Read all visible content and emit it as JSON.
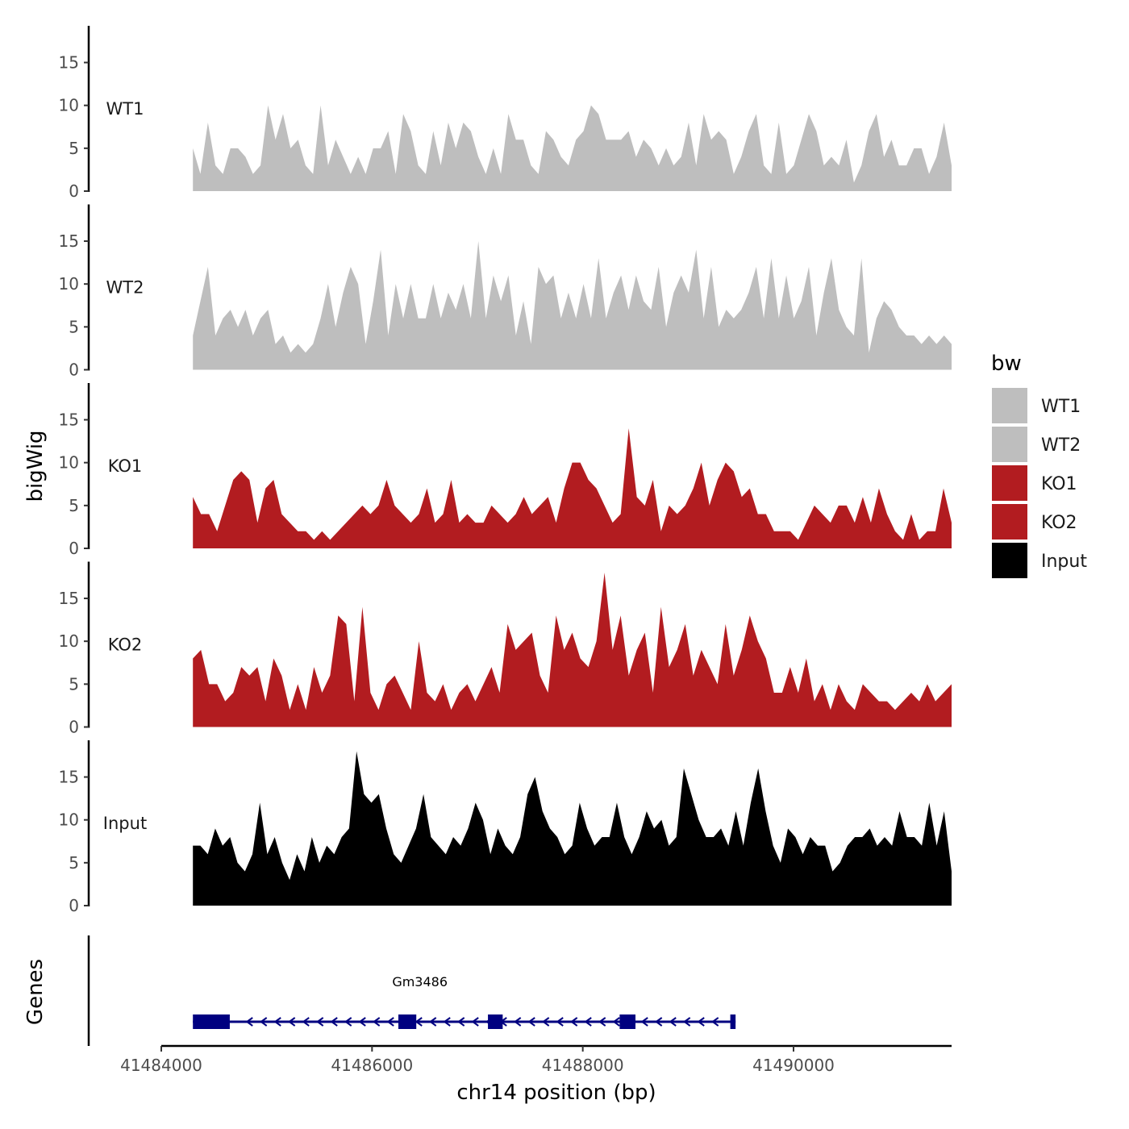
{
  "chart_data": {
    "type": "area",
    "xlabel": "chr14 position (bp)",
    "ylabel": "bigWig",
    "genes_label": "Genes",
    "xlim": [
      41484000,
      41491500
    ],
    "x_ticks": [
      41484000,
      41486000,
      41488000,
      41490000
    ],
    "x_tick_labels": [
      "41484000",
      "41486000",
      "41488000",
      "41490000"
    ],
    "ylim": [
      0,
      19
    ],
    "y_ticks": [
      0,
      5,
      10,
      15
    ],
    "legend_title": "bw",
    "x_start": 41484300,
    "x_end": 41491500,
    "tracks": [
      {
        "name": "WT1",
        "color": "#bebebe",
        "values": [
          5,
          2,
          8,
          3,
          2,
          5,
          5,
          4,
          2,
          3,
          10,
          6,
          9,
          5,
          6,
          3,
          2,
          10,
          3,
          6,
          4,
          2,
          4,
          2,
          5,
          5,
          7,
          2,
          9,
          7,
          3,
          2,
          7,
          3,
          8,
          5,
          8,
          7,
          4,
          2,
          5,
          2,
          9,
          6,
          6,
          3,
          2,
          7,
          6,
          4,
          3,
          6,
          7,
          10,
          9,
          6,
          6,
          6,
          7,
          4,
          6,
          5,
          3,
          5,
          3,
          4,
          8,
          3,
          9,
          6,
          7,
          6,
          2,
          4,
          7,
          9,
          3,
          2,
          8,
          2,
          3,
          6,
          9,
          7,
          3,
          4,
          3,
          6,
          1,
          3,
          7,
          9,
          4,
          6,
          3,
          3,
          5,
          5,
          2,
          4,
          8,
          3
        ]
      },
      {
        "name": "WT2",
        "color": "#bebebe",
        "values": [
          4,
          8,
          12,
          4,
          6,
          7,
          5,
          7,
          4,
          6,
          7,
          3,
          4,
          2,
          3,
          2,
          3,
          6,
          10,
          5,
          9,
          12,
          10,
          3,
          8,
          14,
          4,
          10,
          6,
          10,
          6,
          6,
          10,
          6,
          9,
          7,
          10,
          6,
          15,
          6,
          11,
          8,
          11,
          4,
          8,
          3,
          12,
          10,
          11,
          6,
          9,
          6,
          10,
          6,
          13,
          6,
          9,
          11,
          7,
          11,
          8,
          7,
          12,
          5,
          9,
          11,
          9,
          14,
          6,
          12,
          5,
          7,
          6,
          7,
          9,
          12,
          6,
          13,
          6,
          11,
          6,
          8,
          12,
          4,
          9,
          13,
          7,
          5,
          4,
          13,
          2,
          6,
          8,
          7,
          5,
          4,
          4,
          3,
          4,
          3,
          4,
          3
        ]
      },
      {
        "name": "KO1",
        "color": "#b21c20",
        "values": [
          6,
          4,
          4,
          2,
          5,
          8,
          9,
          8,
          3,
          7,
          8,
          4,
          3,
          2,
          2,
          1,
          2,
          1,
          2,
          3,
          4,
          5,
          4,
          5,
          8,
          5,
          4,
          3,
          4,
          7,
          3,
          4,
          8,
          3,
          4,
          3,
          3,
          5,
          4,
          3,
          4,
          6,
          4,
          5,
          6,
          3,
          7,
          10,
          10,
          8,
          7,
          5,
          3,
          4,
          14,
          6,
          5,
          8,
          2,
          5,
          4,
          5,
          7,
          10,
          5,
          8,
          10,
          9,
          6,
          7,
          4,
          4,
          2,
          2,
          2,
          1,
          3,
          5,
          4,
          3,
          5,
          5,
          3,
          6,
          3,
          7,
          4,
          2,
          1,
          4,
          1,
          2,
          2,
          7,
          3
        ]
      },
      {
        "name": "KO2",
        "color": "#b21c20",
        "values": [
          8,
          9,
          5,
          5,
          3,
          4,
          7,
          6,
          7,
          3,
          8,
          6,
          2,
          5,
          2,
          7,
          4,
          6,
          13,
          12,
          3,
          14,
          4,
          2,
          5,
          6,
          4,
          2,
          10,
          4,
          3,
          5,
          2,
          4,
          5,
          3,
          5,
          7,
          4,
          12,
          9,
          10,
          11,
          6,
          4,
          13,
          9,
          11,
          8,
          7,
          10,
          18,
          9,
          13,
          6,
          9,
          11,
          4,
          14,
          7,
          9,
          12,
          6,
          9,
          7,
          5,
          12,
          6,
          9,
          13,
          10,
          8,
          4,
          4,
          7,
          4,
          8,
          3,
          5,
          2,
          5,
          3,
          2,
          5,
          4,
          3,
          3,
          2,
          3,
          4,
          3,
          5,
          3,
          4,
          5
        ]
      },
      {
        "name": "Input",
        "color": "#000000",
        "values": [
          7,
          7,
          6,
          9,
          7,
          8,
          5,
          4,
          6,
          12,
          6,
          8,
          5,
          3,
          6,
          4,
          8,
          5,
          7,
          6,
          8,
          9,
          18,
          13,
          12,
          13,
          9,
          6,
          5,
          7,
          9,
          13,
          8,
          7,
          6,
          8,
          7,
          9,
          12,
          10,
          6,
          9,
          7,
          6,
          8,
          13,
          15,
          11,
          9,
          8,
          6,
          7,
          12,
          9,
          7,
          8,
          8,
          12,
          8,
          6,
          8,
          11,
          9,
          10,
          7,
          8,
          16,
          13,
          10,
          8,
          8,
          9,
          7,
          11,
          7,
          12,
          16,
          11,
          7,
          5,
          9,
          8,
          6,
          8,
          7,
          7,
          4,
          5,
          7,
          8,
          8,
          9,
          7,
          8,
          7,
          11,
          8,
          8,
          7,
          12,
          7,
          11,
          4
        ]
      }
    ],
    "gene": {
      "name": "Gm3486",
      "color": "#000080",
      "start": 41484300,
      "end": 41489450,
      "exons": [
        [
          41484300,
          41484650
        ],
        [
          41486250,
          41486420
        ],
        [
          41487100,
          41487240
        ],
        [
          41488350,
          41488500
        ],
        [
          41489400,
          41489450
        ]
      ]
    }
  }
}
